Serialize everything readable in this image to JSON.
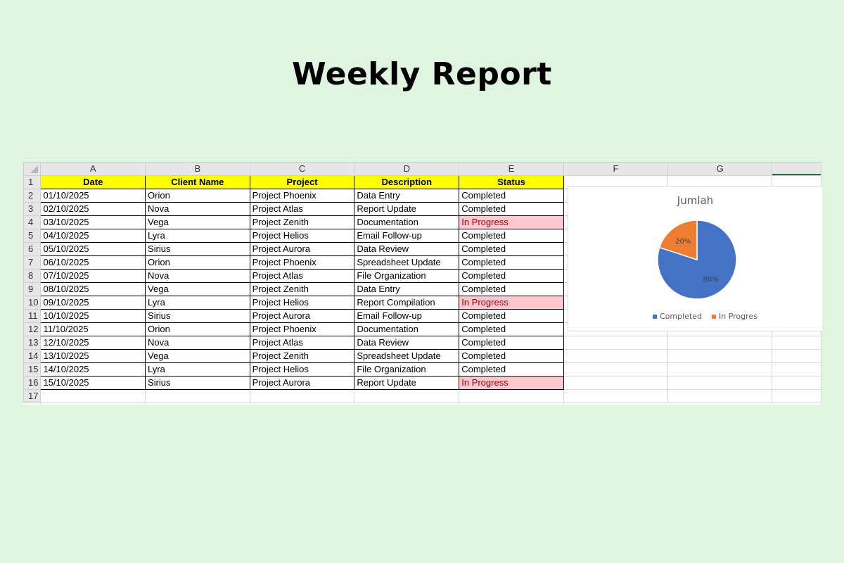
{
  "title": "Weekly Report",
  "spreadsheet": {
    "columns": [
      "A",
      "B",
      "C",
      "D",
      "E",
      "F",
      "G"
    ],
    "headers": [
      "Date",
      "Client Name",
      "Project",
      "Description",
      "Status"
    ],
    "rows": [
      [
        "01/10/2025",
        "Orion",
        "Project Phoenix",
        "Data Entry",
        "Completed"
      ],
      [
        "02/10/2025",
        "Nova",
        "Project Atlas",
        "Report Update",
        "Completed"
      ],
      [
        "03/10/2025",
        "Vega",
        "Project Zenith",
        "Documentation",
        "In Progress"
      ],
      [
        "04/10/2025",
        "Lyra",
        "Project Helios",
        "Email Follow-up",
        "Completed"
      ],
      [
        "05/10/2025",
        "Sirius",
        "Project Aurora",
        "Data Review",
        "Completed"
      ],
      [
        "06/10/2025",
        "Orion",
        "Project Phoenix",
        "Spreadsheet Update",
        "Completed"
      ],
      [
        "07/10/2025",
        "Nova",
        "Project Atlas",
        "File Organization",
        "Completed"
      ],
      [
        "08/10/2025",
        "Vega",
        "Project Zenith",
        "Data Entry",
        "Completed"
      ],
      [
        "09/10/2025",
        "Lyra",
        "Project Helios",
        "Report Compilation",
        "In Progress"
      ],
      [
        "10/10/2025",
        "Sirius",
        "Project Aurora",
        "Email Follow-up",
        "Completed"
      ],
      [
        "11/10/2025",
        "Orion",
        "Project Phoenix",
        "Documentation",
        "Completed"
      ],
      [
        "12/10/2025",
        "Nova",
        "Project Atlas",
        "Data Review",
        "Completed"
      ],
      [
        "13/10/2025",
        "Vega",
        "Project Zenith",
        "Spreadsheet Update",
        "Completed"
      ],
      [
        "14/10/2025",
        "Lyra",
        "Project Helios",
        "File Organization",
        "Completed"
      ],
      [
        "15/10/2025",
        "Sirius",
        "Project Aurora",
        "Report Update",
        "In Progress"
      ]
    ],
    "row_numbers": [
      1,
      2,
      3,
      4,
      5,
      6,
      7,
      8,
      9,
      10,
      11,
      12,
      13,
      14,
      15,
      16,
      17
    ]
  },
  "chart_data": {
    "type": "pie",
    "title": "Jumlah",
    "categories": [
      "Completed",
      "In Progres"
    ],
    "values": [
      80,
      20
    ],
    "labels": [
      "80%",
      "20%"
    ],
    "colors": [
      "#4472c4",
      "#ed7d31"
    ],
    "legend": "bottom"
  }
}
